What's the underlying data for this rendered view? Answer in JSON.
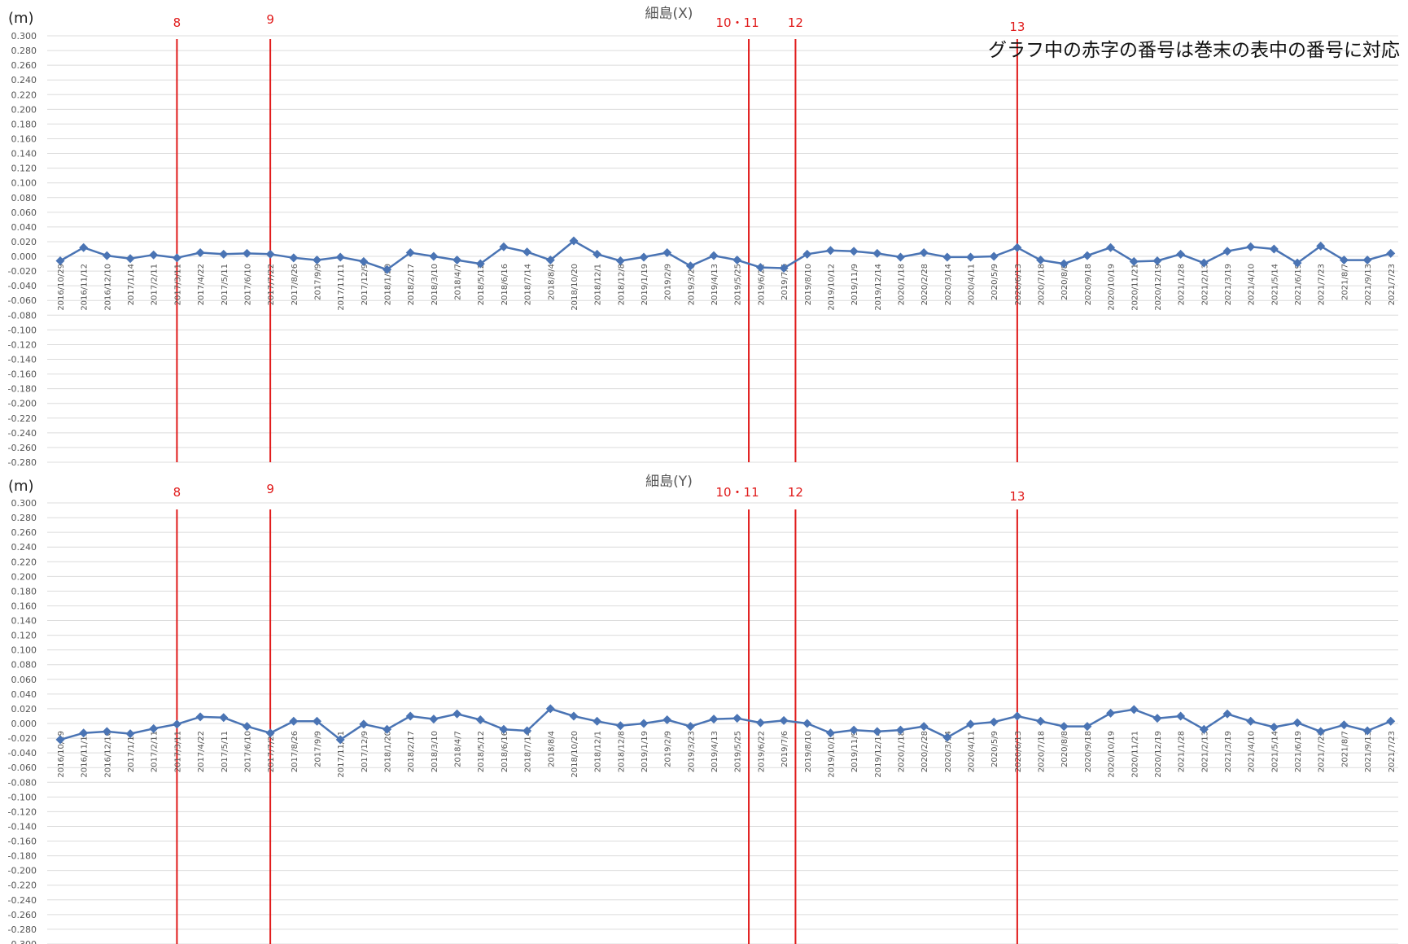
{
  "note": "グラフ中の赤字の番号は巻末の表中の番号に対応",
  "colors": {
    "series": "#4a74b4",
    "event": "#e01a1a",
    "grid": "#dcdcdc",
    "tick": "#555555"
  },
  "chart_data": [
    {
      "type": "line",
      "title": "細島(X)",
      "unit_label": "(m)",
      "xlabel": "",
      "ylabel": "",
      "ylim": [
        -0.28,
        0.3
      ],
      "ytick_step": 0.02,
      "grid": true,
      "marker": "diamond",
      "categories": [
        "2016/10/29",
        "2016/11/12",
        "2016/12/10",
        "2017/1/14",
        "2017/2/11",
        "2017/3/11",
        "2017/4/22",
        "2017/5/11",
        "2017/6/10",
        "2017/7/22",
        "2017/8/26",
        "2017/9/9",
        "2017/11/11",
        "2017/12/9",
        "2018/1/20",
        "2018/2/17",
        "2018/3/10",
        "2018/4/7",
        "2018/5/12",
        "2018/6/16",
        "2018/7/14",
        "2018/8/4",
        "2018/10/20",
        "2018/12/1",
        "2018/12/8",
        "2019/1/19",
        "2019/2/9",
        "2019/3/23",
        "2019/4/13",
        "2019/5/25",
        "2019/6/22",
        "2019/7/6",
        "2019/8/10",
        "2019/10/12",
        "2019/11/9",
        "2019/12/14",
        "2020/1/18",
        "2020/2/28",
        "2020/3/14",
        "2020/4/11",
        "2020/5/9",
        "2020/6/13",
        "2020/7/18",
        "2020/8/8",
        "2020/9/18",
        "2020/10/19",
        "2020/11/21",
        "2020/12/19",
        "2021/1/28",
        "2021/2/13",
        "2021/3/19",
        "2021/4/10",
        "2021/5/14",
        "2021/6/19",
        "2021/7/23",
        "2021/8/7",
        "2021/9/13",
        "2021/7/23"
      ],
      "series": [
        {
          "values": [
            -0.006,
            0.012,
            0.001,
            -0.003,
            0.002,
            -0.002,
            0.005,
            0.003,
            0.004,
            0.003,
            -0.002,
            -0.005,
            -0.001,
            -0.007,
            -0.018,
            0.005,
            0.0,
            -0.005,
            -0.01,
            0.013,
            0.006,
            -0.005,
            0.021,
            0.003,
            -0.006,
            -0.001,
            0.005,
            -0.013,
            0.001,
            -0.005,
            -0.015,
            -0.016,
            0.003,
            0.008,
            0.007,
            0.004,
            -0.001,
            0.005,
            -0.001,
            -0.001,
            0.0,
            0.012,
            -0.005,
            -0.01,
            0.001,
            0.012,
            -0.007,
            -0.006,
            0.003,
            -0.009,
            0.007,
            0.013,
            0.01,
            -0.009,
            0.014,
            -0.005,
            -0.005,
            0.004
          ]
        }
      ],
      "events": [
        {
          "label": "8",
          "after_index": 5
        },
        {
          "label": "9",
          "after_index": 9
        },
        {
          "label": "10・11",
          "after_index": 29
        },
        {
          "label": "12",
          "after_index": 31
        },
        {
          "label": "13",
          "after_index": 41
        }
      ]
    },
    {
      "type": "line",
      "title": "細島(Y)",
      "unit_label": "(m)",
      "xlabel": "",
      "ylabel": "",
      "ylim": [
        -0.3,
        0.3
      ],
      "ytick_step": 0.02,
      "grid": true,
      "marker": "diamond",
      "categories": [
        "2016/10/29",
        "2016/11/12",
        "2016/12/10",
        "2017/1/14",
        "2017/2/11",
        "2017/3/11",
        "2017/4/22",
        "2017/5/11",
        "2017/6/10",
        "2017/7/22",
        "2017/8/26",
        "2017/9/9",
        "2017/11/11",
        "2017/12/9",
        "2018/1/20",
        "2018/2/17",
        "2018/3/10",
        "2018/4/7",
        "2018/5/12",
        "2018/6/16",
        "2018/7/14",
        "2018/8/4",
        "2018/10/20",
        "2018/12/1",
        "2018/12/8",
        "2019/1/19",
        "2019/2/9",
        "2019/3/23",
        "2019/4/13",
        "2019/5/25",
        "2019/6/22",
        "2019/7/6",
        "2019/8/10",
        "2019/10/12",
        "2019/11/9",
        "2019/12/14",
        "2020/1/18",
        "2020/2/28",
        "2020/3/14",
        "2020/4/11",
        "2020/5/9",
        "2020/6/13",
        "2020/7/18",
        "2020/8/8",
        "2020/9/18",
        "2020/10/19",
        "2020/11/21",
        "2020/12/19",
        "2021/1/28",
        "2021/2/13",
        "2021/3/19",
        "2021/4/10",
        "2021/5/14",
        "2021/6/19",
        "2021/7/23",
        "2021/8/7",
        "2021/9/13",
        "2021/7/23"
      ],
      "series": [
        {
          "values": [
            -0.022,
            -0.013,
            -0.011,
            -0.014,
            -0.007,
            -0.001,
            0.009,
            0.008,
            -0.004,
            -0.013,
            0.003,
            0.003,
            -0.022,
            -0.001,
            -0.008,
            0.01,
            0.006,
            0.013,
            0.005,
            -0.008,
            -0.01,
            0.02,
            0.01,
            0.003,
            -0.003,
            0.0,
            0.005,
            -0.004,
            0.006,
            0.007,
            0.001,
            0.004,
            0.0,
            -0.013,
            -0.009,
            -0.011,
            -0.009,
            -0.004,
            -0.019,
            -0.001,
            0.002,
            0.01,
            0.003,
            -0.004,
            -0.004,
            0.014,
            0.019,
            0.007,
            0.01,
            -0.008,
            0.013,
            0.003,
            -0.005,
            0.001,
            -0.011,
            -0.002,
            -0.01,
            0.003
          ]
        }
      ],
      "events": [
        {
          "label": "8",
          "after_index": 5
        },
        {
          "label": "9",
          "after_index": 9
        },
        {
          "label": "10・11",
          "after_index": 29
        },
        {
          "label": "12",
          "after_index": 31
        },
        {
          "label": "13",
          "after_index": 41
        }
      ]
    }
  ]
}
